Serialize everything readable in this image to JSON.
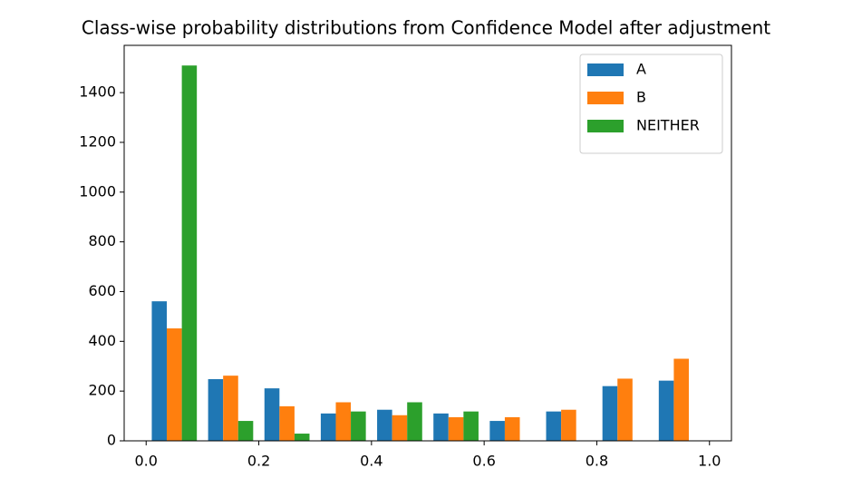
{
  "chart_data": {
    "type": "histogram",
    "title": "Class-wise probability distributions from Confidence Model after adjustment",
    "bins": [
      0,
      0.1,
      0.2,
      0.3,
      0.4,
      0.5,
      0.6,
      0.7,
      0.8,
      0.9,
      1.0
    ],
    "series": [
      {
        "name": "A",
        "color": "#1f77b4",
        "values": [
          561,
          248,
          211,
          110,
          125,
          110,
          80,
          118,
          220,
          242
        ]
      },
      {
        "name": "B",
        "color": "#ff7f0e",
        "values": [
          452,
          262,
          139,
          155,
          103,
          95,
          95,
          125,
          250,
          330
        ]
      },
      {
        "name": "NEITHER",
        "color": "#2ca02c",
        "values": [
          1509,
          80,
          29,
          118,
          155,
          118,
          0,
          0,
          0,
          0
        ]
      }
    ],
    "xlim": [
      -0.039,
      1.039
    ],
    "ylim": [
      0,
      1590
    ],
    "xticks": [
      {
        "value": 0,
        "label": "0.0"
      },
      0.2,
      0.4,
      0.6,
      0.8,
      {
        "value": 1,
        "label": "1.0"
      }
    ],
    "yticks": [
      0,
      200,
      400,
      600,
      800,
      1000,
      1200,
      1400
    ],
    "legend": "upper right"
  }
}
